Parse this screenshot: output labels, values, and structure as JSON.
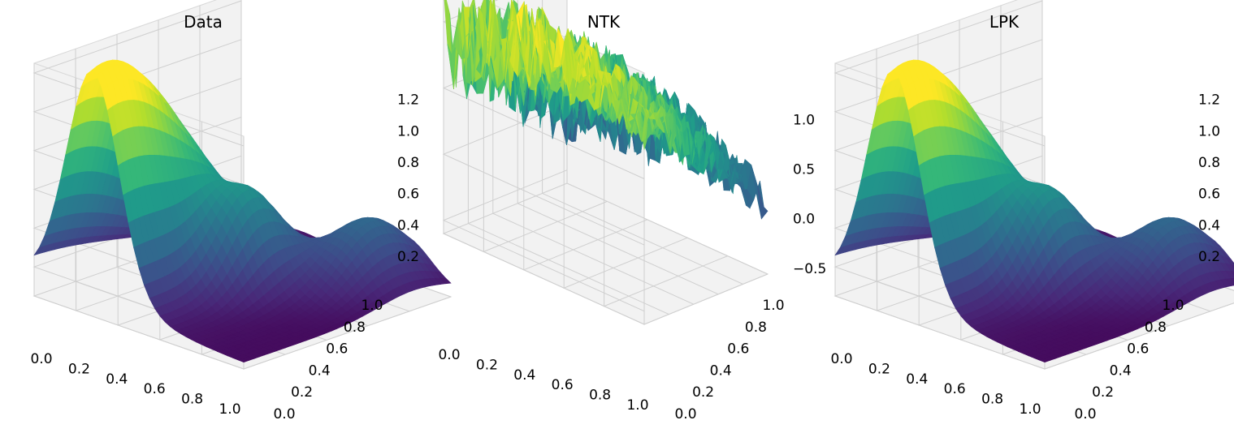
{
  "figure": {
    "background": "#ffffff",
    "colormap": "viridis"
  },
  "chart_data": [
    {
      "type": "surface3d",
      "title": "Data",
      "surface": "data",
      "x_ticks": [
        "0.0",
        "0.2",
        "0.4",
        "0.6",
        "0.8",
        "1.0"
      ],
      "y_ticks": [
        "0.0",
        "0.2",
        "0.4",
        "0.6",
        "0.8",
        "1.0"
      ],
      "z_ticks": [
        "0.2",
        "0.4",
        "0.6",
        "0.8",
        "1.0",
        "1.2"
      ],
      "x_values": [
        0.0,
        0.2,
        0.4,
        0.6,
        0.8,
        1.0
      ],
      "y_values": [
        0.0,
        0.2,
        0.4,
        0.6,
        0.8,
        1.0
      ],
      "z_values": [
        0.2,
        0.4,
        0.6,
        0.8,
        1.0,
        1.2
      ],
      "zlim": [
        0.05,
        1.25
      ]
    },
    {
      "type": "surface3d",
      "title": "NTK",
      "surface": "ntk",
      "x_ticks": [
        "0.0",
        "0.2",
        "0.4",
        "0.6",
        "0.8",
        "1.0"
      ],
      "y_ticks": [
        "0.0",
        "0.2",
        "0.4",
        "0.6",
        "0.8",
        "1.0"
      ],
      "z_ticks": [
        "−0.5",
        "0.0",
        "0.5",
        "1.0"
      ],
      "x_values": [
        0.0,
        0.2,
        0.4,
        0.6,
        0.8,
        1.0
      ],
      "y_values": [
        0.0,
        0.2,
        0.4,
        0.6,
        0.8,
        1.0
      ],
      "z_values": [
        -0.5,
        0.0,
        0.5,
        1.0
      ],
      "zlim": [
        -0.6,
        1.3
      ]
    },
    {
      "type": "surface3d",
      "title": "LPK",
      "surface": "data",
      "x_ticks": [
        "0.0",
        "0.2",
        "0.4",
        "0.6",
        "0.8",
        "1.0"
      ],
      "y_ticks": [
        "0.0",
        "0.2",
        "0.4",
        "0.6",
        "0.8",
        "1.0"
      ],
      "z_ticks": [
        "0.2",
        "0.4",
        "0.6",
        "0.8",
        "1.0",
        "1.2"
      ],
      "x_values": [
        0.0,
        0.2,
        0.4,
        0.6,
        0.8,
        1.0
      ],
      "y_values": [
        0.0,
        0.2,
        0.4,
        0.6,
        0.8,
        1.0
      ],
      "z_values": [
        0.2,
        0.4,
        0.6,
        0.8,
        1.0,
        1.2
      ],
      "zlim": [
        0.05,
        1.25
      ]
    }
  ]
}
